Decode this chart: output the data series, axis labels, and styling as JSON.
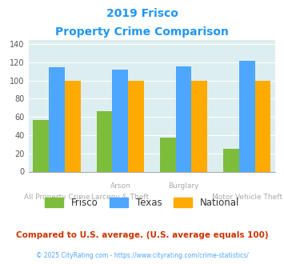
{
  "title_line1": "2019 Frisco",
  "title_line2": "Property Crime Comparison",
  "frisco": [
    57,
    66,
    37,
    25
  ],
  "texas": [
    115,
    112,
    116,
    122
  ],
  "national": [
    100,
    100,
    100,
    100
  ],
  "frisco_color": "#7cbd3c",
  "texas_color": "#4da6ff",
  "national_color": "#ffaa00",
  "ylim": [
    0,
    145
  ],
  "yticks": [
    0,
    20,
    40,
    60,
    80,
    100,
    120,
    140
  ],
  "background_color": "#ddeef0",
  "footer_text": "Compared to U.S. average. (U.S. average equals 100)",
  "copyright_text": "© 2025 CityRating.com - https://www.cityrating.com/crime-statistics/",
  "title_color": "#2196f3",
  "footer_color": "#cc3300",
  "copyright_color": "#4da6ff",
  "bar_width": 0.25,
  "legend_labels": [
    "Frisco",
    "Texas",
    "National"
  ],
  "xtick_top": [
    "",
    "Arson",
    "",
    "Burglary"
  ],
  "xtick_bot": [
    "All Property Crime",
    "Larceny & Theft",
    "",
    "Motor Vehicle Theft"
  ],
  "xtick_bot_show": [
    true,
    true,
    false,
    true
  ]
}
